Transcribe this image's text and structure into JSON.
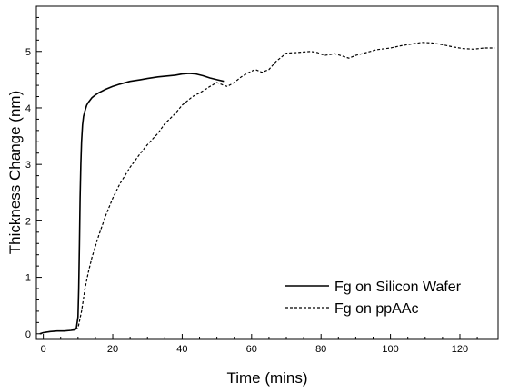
{
  "chart_data": {
    "type": "line",
    "xlabel": "Time (mins)",
    "ylabel": "Thickness Change (nm)",
    "xlim": [
      -2,
      131
    ],
    "ylim": [
      -0.1,
      5.8
    ],
    "xticks": [
      0,
      20,
      40,
      60,
      80,
      100,
      120
    ],
    "yticks": [
      0,
      1,
      2,
      3,
      4,
      5
    ],
    "grid": false,
    "legend_position": "bottom-right",
    "series": [
      {
        "name": "Fg on Silicon Wafer",
        "style": "solid",
        "color": "#000000",
        "x": [
          -1,
          0,
          2,
          4,
          6,
          8,
          9,
          9.5,
          10,
          10.2,
          10.4,
          10.6,
          10.8,
          11,
          11.3,
          11.6,
          12,
          12.5,
          13,
          14,
          15,
          16,
          18,
          20,
          22,
          25,
          28,
          30,
          33,
          35,
          38,
          40,
          42,
          44,
          46,
          48,
          50,
          52
        ],
        "y": [
          0.0,
          0.02,
          0.04,
          0.05,
          0.05,
          0.06,
          0.07,
          0.09,
          0.3,
          0.8,
          1.6,
          2.4,
          3.0,
          3.4,
          3.7,
          3.85,
          3.95,
          4.05,
          4.1,
          4.18,
          4.23,
          4.27,
          4.33,
          4.38,
          4.42,
          4.47,
          4.5,
          4.52,
          4.55,
          4.56,
          4.58,
          4.6,
          4.61,
          4.6,
          4.57,
          4.53,
          4.5,
          4.47
        ]
      },
      {
        "name": "Fg on ppAAc",
        "style": "dashed",
        "color": "#000000",
        "x": [
          -1,
          0,
          2,
          4,
          6,
          8,
          9,
          10,
          11,
          12,
          13,
          14,
          15,
          16,
          18,
          20,
          22,
          25,
          28,
          30,
          33,
          35,
          38,
          40,
          43,
          46,
          48,
          50,
          52,
          53,
          55,
          57,
          59,
          61,
          63,
          65,
          67,
          70,
          73,
          75,
          77,
          79,
          81,
          84,
          86,
          88,
          90,
          93,
          96,
          100,
          103,
          106,
          109,
          112,
          115,
          118,
          121,
          124,
          127,
          130
        ],
        "y": [
          0.0,
          0.02,
          0.04,
          0.05,
          0.05,
          0.06,
          0.07,
          0.1,
          0.4,
          0.8,
          1.1,
          1.35,
          1.55,
          1.75,
          2.1,
          2.4,
          2.65,
          2.95,
          3.2,
          3.35,
          3.55,
          3.72,
          3.9,
          4.05,
          4.2,
          4.3,
          4.38,
          4.45,
          4.4,
          4.38,
          4.45,
          4.55,
          4.62,
          4.68,
          4.63,
          4.68,
          4.82,
          4.97,
          4.98,
          4.99,
          5.0,
          4.98,
          4.93,
          4.96,
          4.92,
          4.88,
          4.93,
          4.98,
          5.03,
          5.06,
          5.1,
          5.13,
          5.16,
          5.15,
          5.12,
          5.08,
          5.05,
          5.04,
          5.06,
          5.06
        ]
      }
    ]
  }
}
